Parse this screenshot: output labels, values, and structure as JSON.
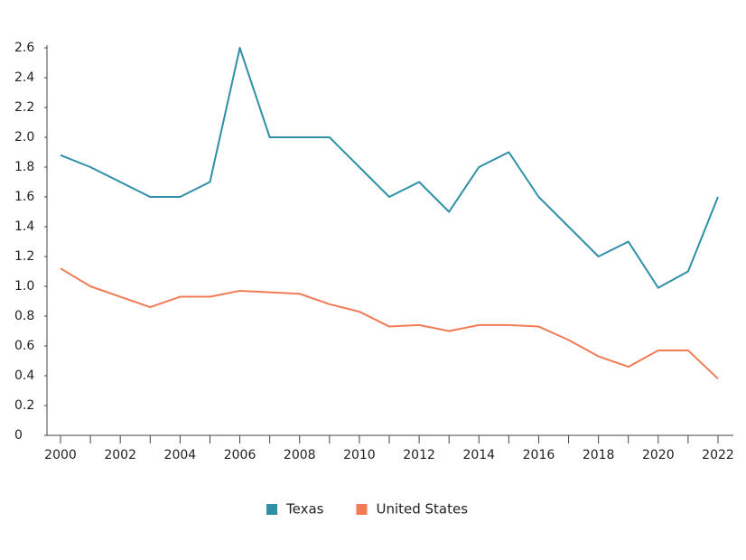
{
  "chart_data": {
    "type": "line",
    "x": [
      2000,
      2001,
      2002,
      2003,
      2004,
      2005,
      2006,
      2007,
      2008,
      2009,
      2010,
      2011,
      2012,
      2013,
      2014,
      2015,
      2016,
      2017,
      2018,
      2019,
      2020,
      2021,
      2022
    ],
    "series": [
      {
        "name": "Texas",
        "color": "#2e8fa6",
        "values": [
          1.88,
          1.8,
          1.7,
          1.6,
          1.6,
          1.7,
          2.6,
          2.0,
          2.0,
          2.0,
          1.8,
          1.6,
          1.7,
          1.5,
          1.8,
          1.9,
          1.6,
          1.4,
          1.2,
          1.3,
          0.99,
          1.1,
          1.6
        ]
      },
      {
        "name": "United States",
        "color": "#f07b55",
        "values": [
          1.12,
          1.0,
          0.93,
          0.86,
          0.93,
          0.93,
          0.97,
          0.96,
          0.95,
          0.88,
          0.83,
          0.73,
          0.74,
          0.7,
          0.74,
          0.74,
          0.73,
          0.64,
          0.53,
          0.46,
          0.57,
          0.57,
          0.38
        ]
      }
    ],
    "xlim": [
      2000,
      2022
    ],
    "xticks": [
      2000,
      2002,
      2004,
      2006,
      2008,
      2010,
      2012,
      2014,
      2016,
      2018,
      2020,
      2022
    ],
    "ylim": [
      0,
      2.6
    ],
    "yticks": [
      0,
      0.2,
      0.4,
      0.6,
      0.8,
      {
        "value": 1,
        "label": "1.0"
      },
      1.2,
      1.4,
      1.6,
      1.8,
      {
        "value": 2,
        "label": "2.0"
      },
      2.2,
      2.4,
      2.6
    ],
    "legend": "bottom"
  }
}
